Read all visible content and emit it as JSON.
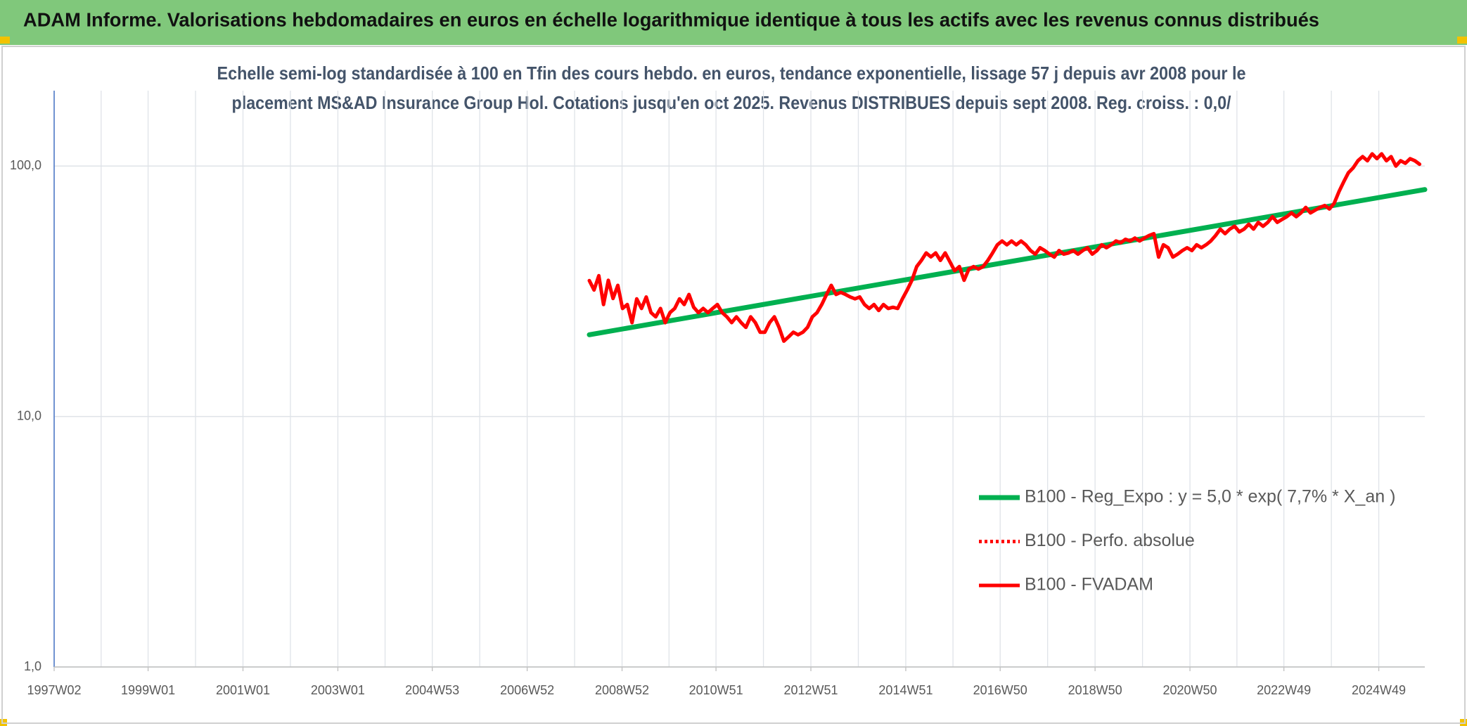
{
  "chart_data": {
    "type": "line",
    "title": "ADAM Informe. Valorisations hebdomadaires en euros en échelle logarithmique identique à tous les actifs avec les revenus connus distribués",
    "subtitle": [
      "Echelle semi-log standardisée à 100 en Tfin des cours hebdo. en euros, tendance exponentielle, lissage 57 j depuis avr 2008 pour le",
      "placement MS&AD Insurance Group Hol. Cotations jusqu'en oct 2025. Revenus DISTRIBUES depuis sept 2008. Reg. croiss. : 0,0/"
    ],
    "log_y": true,
    "grid": true,
    "legend": "right",
    "xlim": [
      1997.02,
      2025.91
    ],
    "xticks": [
      {
        "value": 1997.02,
        "label": "1997W02"
      },
      {
        "value": 1999.0,
        "label": "1999W01"
      },
      {
        "value": 2001.0,
        "label": "2001W01"
      },
      {
        "value": 2003.0,
        "label": "2003W01"
      },
      {
        "value": 2004.99,
        "label": "2004W53"
      },
      {
        "value": 2006.99,
        "label": "2006W52"
      },
      {
        "value": 2008.99,
        "label": "2008W52"
      },
      {
        "value": 2010.97,
        "label": "2010W51"
      },
      {
        "value": 2012.97,
        "label": "2012W51"
      },
      {
        "value": 2014.97,
        "label": "2014W51"
      },
      {
        "value": 2016.96,
        "label": "2016W50"
      },
      {
        "value": 2018.96,
        "label": "2018W50"
      },
      {
        "value": 2020.96,
        "label": "2020W50"
      },
      {
        "value": 2022.94,
        "label": "2022W49"
      },
      {
        "value": 2024.94,
        "label": "2024W49"
      }
    ],
    "ylim": [
      1,
      200
    ],
    "yticks": [
      {
        "value": 1,
        "label": "1,0"
      },
      {
        "value": 10,
        "label": "10,0"
      },
      {
        "value": 100,
        "label": "100,0"
      }
    ],
    "series": [
      {
        "name": "B100 - Reg_Expo : y = 5,0 * exp( 7,7% *  X_an )",
        "color": "#00b050",
        "style": "solid",
        "x": [
          2008.3,
          2025.91
        ],
        "values": [
          21.2,
          80.6
        ]
      },
      {
        "name": "B100 - Perfo. absolue",
        "color": "#ff0000",
        "style": "dotted",
        "x": [],
        "values": []
      },
      {
        "name": "B100 - FVADAM",
        "color": "#ff0000",
        "style": "solid",
        "x": [
          2008.3,
          2008.4,
          2008.5,
          2008.6,
          2008.7,
          2008.8,
          2008.9,
          2009.0,
          2009.1,
          2009.2,
          2009.3,
          2009.4,
          2009.5,
          2009.6,
          2009.7,
          2009.8,
          2009.9,
          2010.0,
          2010.1,
          2010.2,
          2010.3,
          2010.4,
          2010.5,
          2010.6,
          2010.7,
          2010.8,
          2010.9,
          2011.0,
          2011.1,
          2011.2,
          2011.3,
          2011.4,
          2011.5,
          2011.6,
          2011.7,
          2011.8,
          2011.9,
          2012.0,
          2012.1,
          2012.2,
          2012.3,
          2012.4,
          2012.5,
          2012.6,
          2012.7,
          2012.8,
          2012.9,
          2013.0,
          2013.1,
          2013.2,
          2013.3,
          2013.4,
          2013.5,
          2013.6,
          2013.7,
          2013.8,
          2013.9,
          2014.0,
          2014.1,
          2014.2,
          2014.3,
          2014.4,
          2014.5,
          2014.6,
          2014.7,
          2014.8,
          2014.9,
          2015.0,
          2015.1,
          2015.2,
          2015.3,
          2015.4,
          2015.5,
          2015.6,
          2015.7,
          2015.8,
          2015.9,
          2016.0,
          2016.1,
          2016.2,
          2016.3,
          2016.4,
          2016.5,
          2016.6,
          2016.7,
          2016.8,
          2016.9,
          2017.0,
          2017.1,
          2017.2,
          2017.3,
          2017.4,
          2017.5,
          2017.6,
          2017.7,
          2017.8,
          2017.9,
          2018.0,
          2018.1,
          2018.2,
          2018.3,
          2018.4,
          2018.5,
          2018.6,
          2018.7,
          2018.8,
          2018.9,
          2019.0,
          2019.1,
          2019.2,
          2019.3,
          2019.4,
          2019.5,
          2019.6,
          2019.7,
          2019.8,
          2019.9,
          2020.0,
          2020.1,
          2020.2,
          2020.3,
          2020.4,
          2020.5,
          2020.6,
          2020.7,
          2020.8,
          2020.9,
          2021.0,
          2021.1,
          2021.2,
          2021.3,
          2021.4,
          2021.5,
          2021.6,
          2021.7,
          2021.8,
          2021.9,
          2022.0,
          2022.1,
          2022.2,
          2022.3,
          2022.4,
          2022.5,
          2022.6,
          2022.7,
          2022.8,
          2022.9,
          2023.0,
          2023.1,
          2023.2,
          2023.3,
          2023.4,
          2023.5,
          2023.6,
          2023.7,
          2023.8,
          2023.9,
          2024.0,
          2024.1,
          2024.2,
          2024.3,
          2024.4,
          2024.5,
          2024.6,
          2024.7,
          2024.8,
          2024.9,
          2025.0,
          2025.1,
          2025.2,
          2025.3,
          2025.4,
          2025.5,
          2025.6,
          2025.7,
          2025.8
        ],
        "values": [
          34.9,
          32,
          36.5,
          28,
          35,
          29.6,
          33.4,
          27,
          28,
          23.7,
          29.5,
          27,
          30,
          26,
          25,
          27,
          23.7,
          26,
          27,
          29.5,
          28,
          30.7,
          27.3,
          26,
          27,
          26,
          27,
          28,
          26,
          25,
          23.7,
          25,
          23.7,
          22.7,
          25,
          23.7,
          21.7,
          21.7,
          23.7,
          25,
          22.7,
          20,
          20.8,
          21.7,
          21.2,
          21.7,
          22.7,
          25,
          26,
          28,
          30.7,
          33.4,
          30.7,
          31.3,
          30.7,
          30,
          29.5,
          30,
          28,
          27,
          28,
          26.5,
          28,
          27,
          27.3,
          27,
          29.5,
          32,
          35,
          39.7,
          42,
          45,
          43.4,
          45,
          42,
          45,
          41.5,
          38.2,
          39.7,
          35,
          38.8,
          39.7,
          38.8,
          39.7,
          42,
          45,
          48.5,
          50.2,
          48.5,
          50.2,
          48.5,
          50.2,
          48.5,
          46,
          44.5,
          47.2,
          46,
          44.5,
          43.3,
          46,
          44.5,
          45,
          46,
          44.5,
          46,
          47.2,
          44.5,
          46,
          48.5,
          47.2,
          48.5,
          50.2,
          49.4,
          51,
          50.2,
          51.6,
          50.2,
          51.6,
          52.8,
          53.7,
          43.3,
          48.5,
          47.2,
          43.3,
          44.5,
          46,
          47.2,
          46,
          48.5,
          47.2,
          48.5,
          50.2,
          52.8,
          56,
          53.7,
          56,
          57.5,
          54.6,
          56,
          58.6,
          56,
          59.6,
          57.5,
          59.6,
          62.8,
          59.6,
          61.2,
          62.8,
          65.0,
          62.8,
          65,
          68.4,
          65,
          66.7,
          68.4,
          69.6,
          67.4,
          71,
          79,
          86.4,
          94.1,
          98.3,
          105,
          109,
          105,
          111.9,
          107,
          111.9,
          105,
          109,
          100,
          105,
          102.6,
          107,
          105,
          101.7
        ]
      }
    ]
  }
}
